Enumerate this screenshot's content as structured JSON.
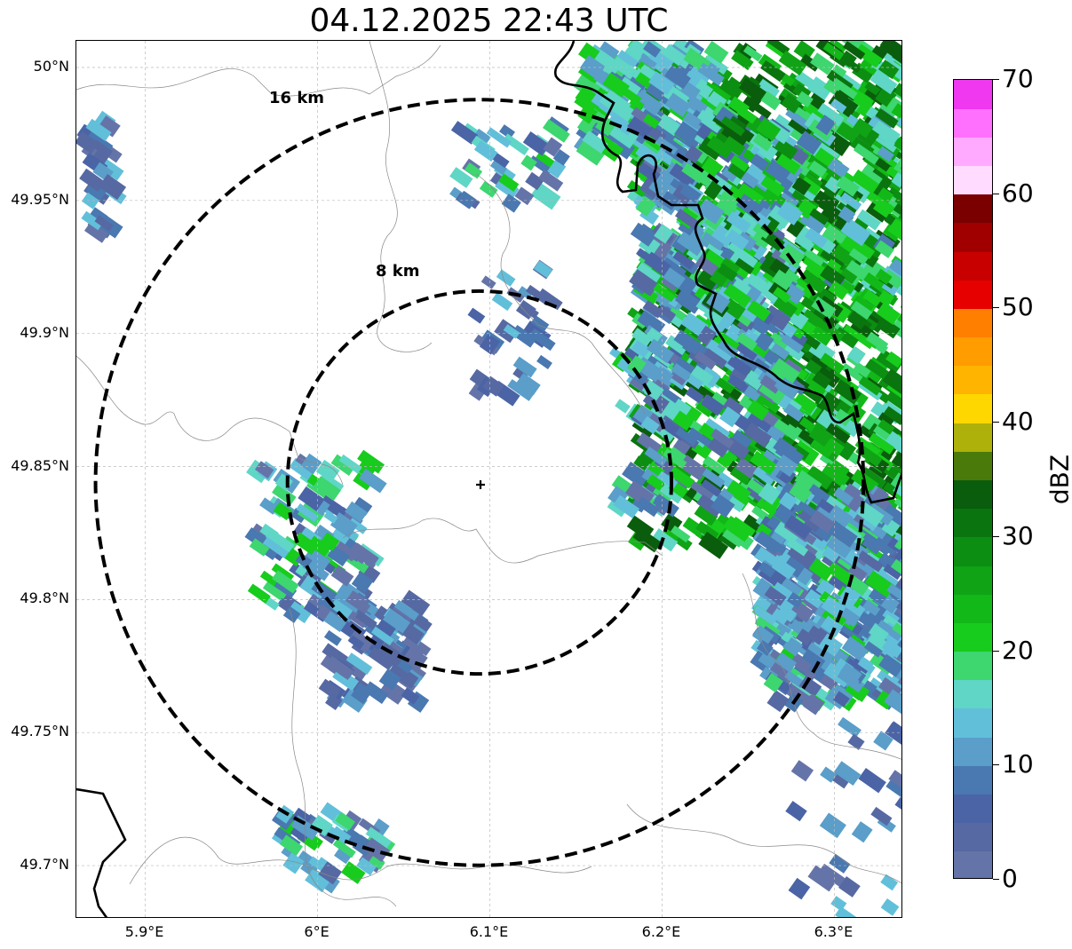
{
  "title": "04.12.2025 22:43 UTC",
  "map": {
    "lat_range": [
      49.68,
      50.01
    ],
    "lon_range": [
      5.86,
      6.34
    ],
    "lat_ticks": [
      {
        "value": 50.0,
        "label": "50°N"
      },
      {
        "value": 49.95,
        "label": "49.95°N"
      },
      {
        "value": 49.9,
        "label": "49.9°N"
      },
      {
        "value": 49.85,
        "label": "49.85°N"
      },
      {
        "value": 49.8,
        "label": "49.8°N"
      },
      {
        "value": 49.75,
        "label": "49.75°N"
      },
      {
        "value": 49.7,
        "label": "49.7°N"
      }
    ],
    "lon_ticks": [
      {
        "value": 5.9,
        "label": "5.9°E"
      },
      {
        "value": 6.0,
        "label": "6°E"
      },
      {
        "value": 6.1,
        "label": "6.1°E"
      },
      {
        "value": 6.2,
        "label": "6.2°E"
      },
      {
        "value": 6.3,
        "label": "6.3°E"
      }
    ],
    "radar_site": {
      "lon": 6.094,
      "lat": 49.844
    },
    "range_rings": [
      {
        "label": "8 km",
        "radius_km": 8
      },
      {
        "label": "16 km",
        "radius_km": 16
      }
    ],
    "gridlines": true
  },
  "colorbar": {
    "title": "dBZ",
    "min": 0,
    "max": 70,
    "tick_labels": [
      "0",
      "10",
      "20",
      "30",
      "40",
      "50",
      "60",
      "70"
    ],
    "colors": [
      "#6574a8",
      "#5669a2",
      "#4b64a6",
      "#4a78b0",
      "#5a9ec9",
      "#62bfda",
      "#5fd6c6",
      "#3dd66f",
      "#17cc1c",
      "#11b817",
      "#0fa315",
      "#0c8e12",
      "#0a740f",
      "#0a5d0c",
      "#4a7a0a",
      "#adb10a",
      "#ffd700",
      "#ffb400",
      "#ff9c00",
      "#ff7f00",
      "#e60000",
      "#c80000",
      "#a00000",
      "#7a0000",
      "#ffdcff",
      "#ffaaff",
      "#ff70ff",
      "#ef38ef"
    ]
  }
}
